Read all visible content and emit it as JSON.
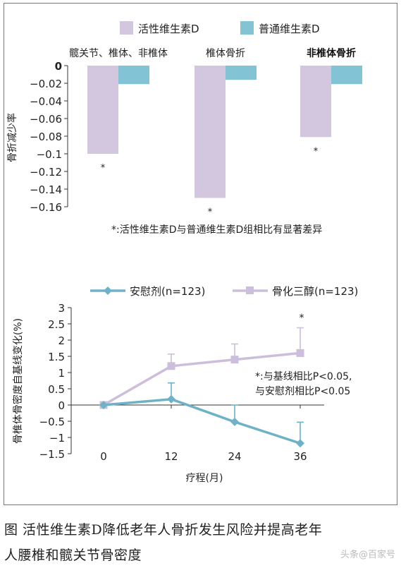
{
  "colors": {
    "active": "#d3c6df",
    "normal": "#83c3d6",
    "placebo": "#6eb2c8",
    "calcitriol": "#cdbedb",
    "axis": "#333333"
  },
  "chart_data": [
    {
      "type": "bar",
      "legend": [
        "活性维生素D",
        "普通维生素D"
      ],
      "categories": [
        "髋关节、椎体、非椎体",
        "椎体骨折",
        "非椎体骨折"
      ],
      "series": [
        {
          "name": "活性维生素D",
          "values": [
            -0.1,
            -0.15,
            -0.081
          ]
        },
        {
          "name": "普通维生素D",
          "values": [
            -0.021,
            -0.016,
            -0.021
          ]
        }
      ],
      "significance": [
        "*",
        "*",
        "*"
      ],
      "ylabel": "骨折减少率",
      "ylim": [
        -0.16,
        0
      ],
      "yticks": [
        "0",
        "−0.02",
        "−0.04",
        "−0.06",
        "−0.08",
        "−0.1",
        "−0.12",
        "−0.14",
        "−0.16"
      ],
      "note": "*:活性维生素D与普通维生素D组相比有显著差异"
    },
    {
      "type": "line",
      "legend": [
        "安慰剂(n=123)",
        "骨化三醇(n=123)"
      ],
      "x": [
        0,
        12,
        24,
        36
      ],
      "xticks": [
        "0",
        "12",
        "24",
        "36"
      ],
      "series": [
        {
          "name": "安慰剂(n=123)",
          "values": [
            0,
            0.18,
            -0.52,
            -1.18
          ],
          "error": [
            0,
            0.5,
            0.52,
            0.65
          ]
        },
        {
          "name": "骨化三醇(n=123)",
          "values": [
            0,
            1.2,
            1.4,
            1.6
          ],
          "error": [
            0,
            0.37,
            0.48,
            0.78
          ]
        }
      ],
      "significance": "*",
      "xlabel": "疗程(月)",
      "ylabel": "骨椎体骨密度自基线变化(%)",
      "ylim": [
        -1.5,
        3
      ],
      "yticks": [
        "3",
        "2.5",
        "2",
        "1.5",
        "1",
        "0.5",
        "0",
        "−0.5",
        "−1",
        "−1.5"
      ],
      "note_lines": [
        "*:与基线相比P<0.05,",
        "与安慰剂相比P<0.05"
      ]
    }
  ],
  "caption": {
    "line1": "图  活性维生素D降低老年人骨折发生风险并提高老年",
    "line2": "人腰椎和髋关节骨密度"
  },
  "watermark": "头条@百家号"
}
